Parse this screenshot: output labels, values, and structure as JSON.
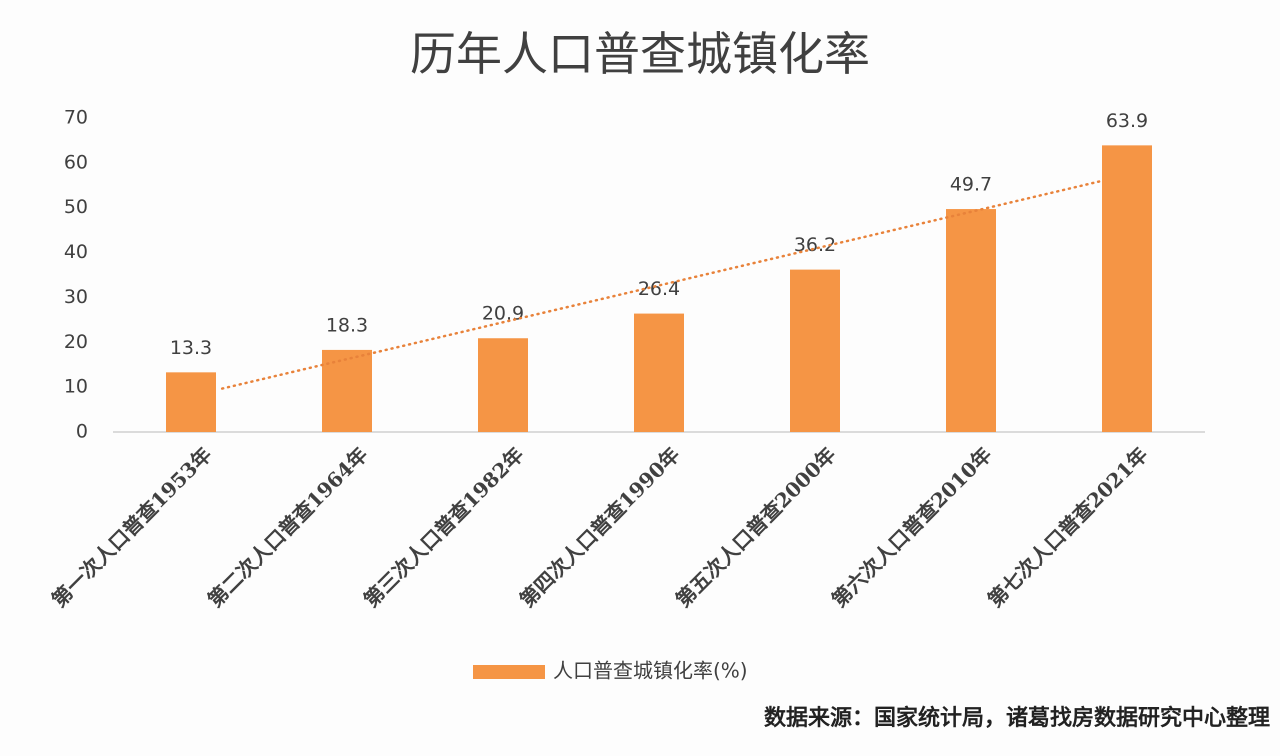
{
  "chart_data": {
    "type": "bar",
    "title": "历年人口普查城镇化率",
    "categories": [
      "第一次人口普查1953年",
      "第二次人口普查1964年",
      "第三次人口普查1982年",
      "第四次人口普查1990年",
      "第五次人口普查2000年",
      "第六次人口普查2010年",
      "第七次人口普查2021年"
    ],
    "series": [
      {
        "name": "人口普查城镇化率(%)",
        "color": "#f59545",
        "values": [
          13.3,
          18.3,
          20.9,
          26.4,
          36.2,
          49.7,
          63.9
        ]
      }
    ],
    "ylim": [
      0,
      70
    ],
    "yticks": [
      0,
      10,
      20,
      30,
      40,
      50,
      60,
      70
    ],
    "trendline": true,
    "trendline_color": "#e8823a",
    "legend": "bottom",
    "source": "数据来源：国家统计局，诸葛找房数据研究中心整理"
  }
}
